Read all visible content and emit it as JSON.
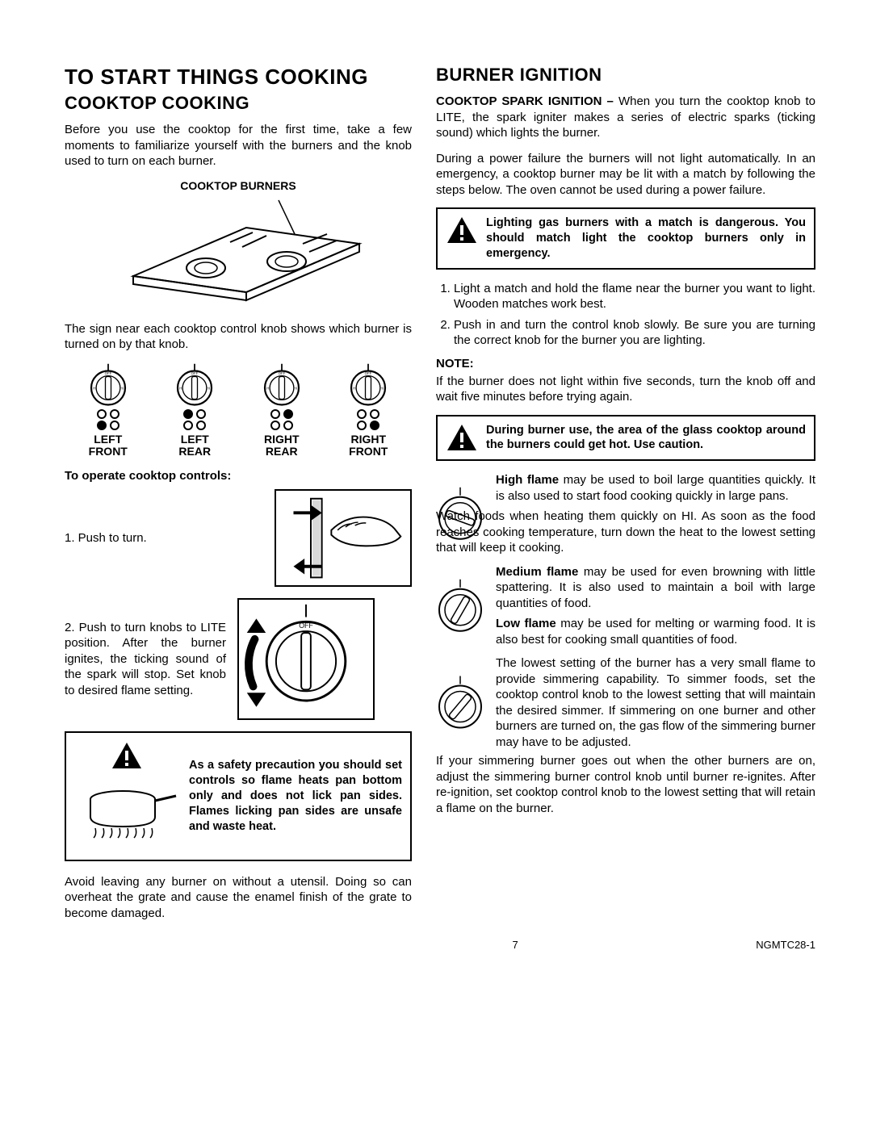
{
  "left": {
    "title": "TO START THINGS COOKING",
    "subtitle": "COOKTOP COOKING",
    "intro": "Before you use the cooktop for the first time, take a few moments to familiarize yourself with the burners and the knob used to turn on each burner.",
    "cooktop_label": "COOKTOP BURNERS",
    "knob_caption": "The sign near each cooktop control knob shows which burner is turned on by that knob.",
    "knobs": [
      {
        "label1": "LEFT",
        "label2": "FRONT",
        "dots": [
          [
            0,
            0
          ],
          [
            1,
            0
          ]
        ]
      },
      {
        "label1": "LEFT",
        "label2": "REAR",
        "dots": [
          [
            1,
            0
          ],
          [
            0,
            0
          ]
        ]
      },
      {
        "label1": "RIGHT",
        "label2": "REAR",
        "dots": [
          [
            0,
            1
          ],
          [
            0,
            0
          ]
        ]
      },
      {
        "label1": "RIGHT",
        "label2": "FRONT",
        "dots": [
          [
            0,
            0
          ],
          [
            0,
            1
          ]
        ]
      }
    ],
    "operate_heading": "To operate cooktop controls:",
    "step1": "1.  Push to turn.",
    "step2": "2.  Push to turn knobs to LITE position. After the burner ignites, the ticking sound of the spark will stop. Set knob to desired flame setting.",
    "pan_warning": "As a safety precaution you should set controls so flame heats pan bottom only and does not lick pan sides. Flames licking pan sides are unsafe and waste heat.",
    "closing": "Avoid leaving any burner on without a utensil. Doing so can overheat the grate and cause the enamel finish of the grate to become damaged."
  },
  "right": {
    "title": "BURNER IGNITION",
    "spark_heading": "COOKTOP SPARK IGNITION – ",
    "spark_body": "When you turn the cooktop knob to LITE, the spark igniter makes a series of electric sparks (ticking sound) which lights the burner.",
    "power_failure": "During a power failure the burners will not light automatically. In an emergency, a cooktop burner may be lit with a match by following the steps below. The oven cannot be used during a power failure.",
    "warn1": "Lighting gas burners with a match is dangerous. You should match light the cooktop burners only in emergency.",
    "match_steps": [
      "Light a match and hold the flame near the burner you want to light. Wooden matches work best.",
      "Push in and turn the control knob slowly. Be sure you are turning the correct knob for the burner you are lighting."
    ],
    "note_label": "NOTE:",
    "note_body": "If the burner does not light within five seconds, turn the knob off and wait five minutes before trying again.",
    "warn2": "During burner use, the area of the glass cooktop around the burners could get hot. Use caution.",
    "high_label": "High flame",
    "high_body1": " may be used to boil large quantities quickly. It is also used to start food cooking quickly in large pans.",
    "high_body2": "Watch foods when heating them quickly on HI. As soon as the food reaches cooking temperature, turn down the heat to the lowest setting that will keep it cooking.",
    "med_label": "Medium flame",
    "med_body": " may be used for even browning with little spattering. It is also used to maintain a boil with large quantities of food.",
    "low_label": "Low flame",
    "low_body": " may be used for melting or warming food. It is also best for cooking small quantities of food.",
    "simmer_body": "The lowest setting of the burner has a very small flame to provide simmering capability. To simmer foods, set the cooktop control knob to the lowest setting that will maintain the desired simmer. If simmering on one burner and other burners are turned on, the gas flow of the simmering burner may have to be adjusted.",
    "simmer_body2": "If your simmering burner goes out when the other burners are on, adjust the simmering burner control knob until burner re-ignites. After re-ignition, set cooktop control knob to the lowest setting that will retain a flame on the burner."
  },
  "footer": {
    "page": "7",
    "code": "NGMTC28-1"
  },
  "colors": {
    "ink": "#000000",
    "paper": "#ffffff"
  }
}
